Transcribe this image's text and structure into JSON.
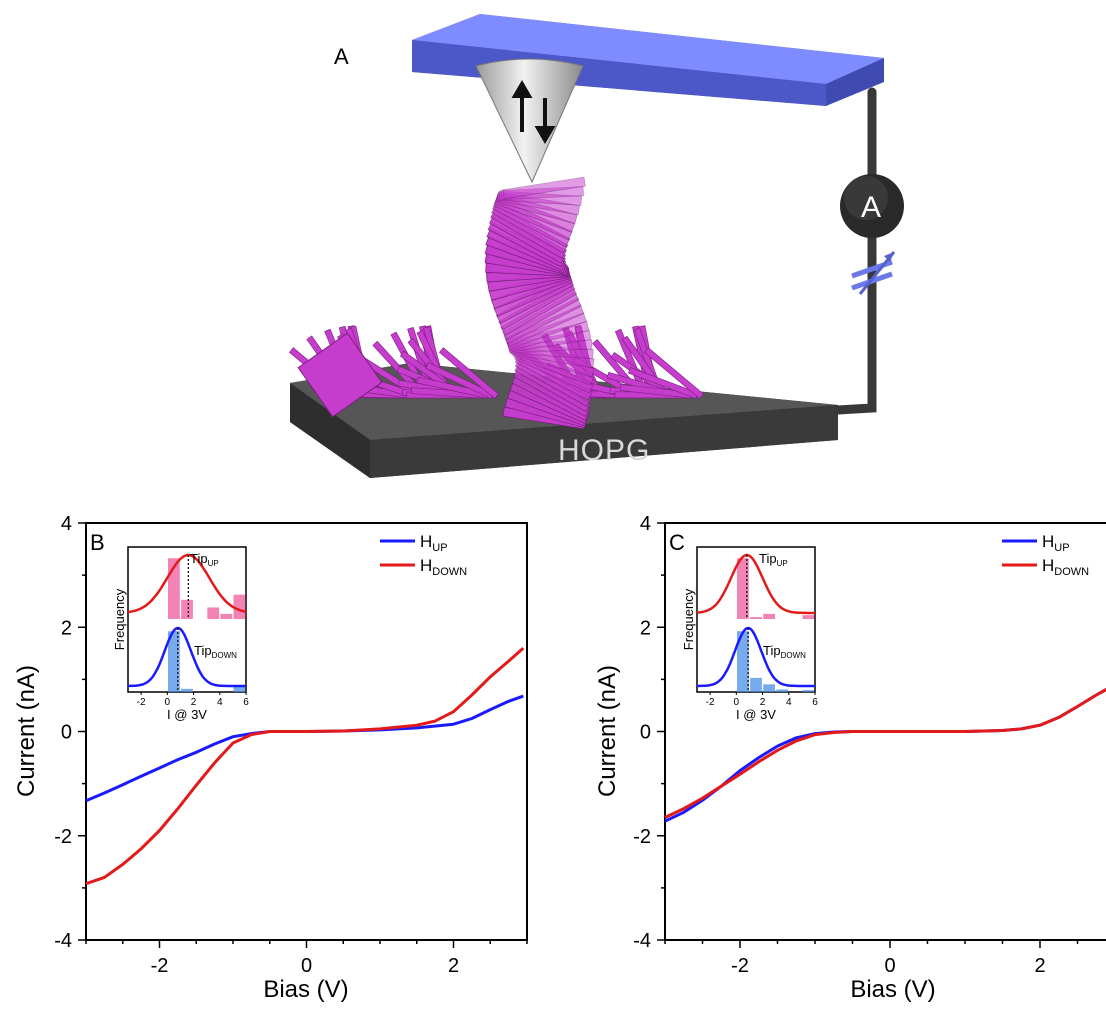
{
  "scene": {
    "panel_label": "A",
    "substrate_label": "HOPG",
    "meter_label": "A",
    "colors": {
      "cantilever": "#6f7cf0",
      "helix": "#c63ccd",
      "substrate": "#4b4b4b",
      "wire": "#3a3a3a"
    }
  },
  "chart_data": [
    {
      "type": "line",
      "panel_label": "B",
      "xlabel": "Bias (V)",
      "ylabel": "Current (nA)",
      "xlim": [
        -3,
        3
      ],
      "ylim": [
        -4,
        4
      ],
      "xticks": [
        -2,
        0,
        2
      ],
      "yticks": [
        -4,
        -2,
        0,
        2,
        4
      ],
      "legend_position": "top-right",
      "series": [
        {
          "name": "UP",
          "legend_main": "H",
          "color": "#1a1aff",
          "x": [
            -3,
            -2.75,
            -2.5,
            -2.25,
            -2,
            -1.75,
            -1.5,
            -1.25,
            -1,
            -0.75,
            -0.5,
            0,
            0.5,
            1,
            1.5,
            2,
            2.25,
            2.5,
            2.75,
            2.95
          ],
          "y": [
            -1.33,
            -1.18,
            -1.02,
            -0.86,
            -0.7,
            -0.54,
            -0.4,
            -0.24,
            -0.1,
            -0.04,
            0,
            0,
            0.01,
            0.03,
            0.07,
            0.14,
            0.25,
            0.42,
            0.58,
            0.68
          ]
        },
        {
          "name": "DOWN",
          "legend_main": "H",
          "color": "#e31a1a",
          "x": [
            -3,
            -2.75,
            -2.5,
            -2.25,
            -2,
            -1.75,
            -1.5,
            -1.25,
            -1,
            -0.75,
            -0.5,
            0,
            0.5,
            1,
            1.5,
            1.75,
            2,
            2.25,
            2.5,
            2.75,
            2.95
          ],
          "y": [
            -2.92,
            -2.8,
            -2.55,
            -2.25,
            -1.9,
            -1.48,
            -1.03,
            -0.6,
            -0.22,
            -0.06,
            0,
            0,
            0.01,
            0.05,
            0.12,
            0.2,
            0.38,
            0.7,
            1.05,
            1.35,
            1.6
          ]
        }
      ],
      "inset": {
        "xlabel": "I @ 3V",
        "ylabel": "Frequency",
        "xlim": [
          -3,
          6
        ],
        "xticks": [
          -2,
          0,
          2,
          4,
          6
        ],
        "up_label_main": "Tip",
        "up_label_sub": "UP",
        "down_label_main": "Tip",
        "down_label_sub": "DOWN",
        "up_bars": [
          {
            "x": 0.5,
            "h": 0.95
          },
          {
            "x": 1.5,
            "h": 0.3
          },
          {
            "x": 3.5,
            "h": 0.18
          },
          {
            "x": 4.5,
            "h": 0.08
          },
          {
            "x": 5.5,
            "h": 0.38
          }
        ],
        "down_bars": [
          {
            "x": 0.5,
            "h": 0.95
          },
          {
            "x": 1.5,
            "h": 0.05
          },
          {
            "x": 5.5,
            "h": 0.08
          }
        ],
        "up_gauss": {
          "mu": 1.6,
          "sigma": 1.6
        },
        "down_gauss": {
          "mu": 0.8,
          "sigma": 1.0
        }
      }
    },
    {
      "type": "line",
      "panel_label": "C",
      "xlabel": "Bias (V)",
      "ylabel": "Current (nA)",
      "xlim": [
        -3,
        3
      ],
      "ylim": [
        -4,
        4
      ],
      "xticks": [
        -2,
        0,
        2
      ],
      "yticks": [
        -4,
        -2,
        0,
        2,
        4
      ],
      "legend_position": "top-right",
      "series": [
        {
          "name": "UP",
          "legend_main": "H",
          "color": "#1a1aff",
          "x": [
            -3,
            -2.75,
            -2.5,
            -2.25,
            -2,
            -1.75,
            -1.5,
            -1.25,
            -1,
            -0.75,
            -0.5,
            0,
            0.5,
            1,
            1.5,
            1.75,
            2,
            2.25,
            2.5,
            2.75,
            3
          ],
          "y": [
            -1.72,
            -1.55,
            -1.32,
            -1.05,
            -0.75,
            -0.5,
            -0.28,
            -0.12,
            -0.04,
            -0.01,
            0,
            0,
            0,
            0,
            0.02,
            0.05,
            0.12,
            0.27,
            0.48,
            0.7,
            0.9
          ]
        },
        {
          "name": "DOWN",
          "legend_main": "H",
          "color": "#e31a1a",
          "x": [
            -3,
            -2.75,
            -2.5,
            -2.25,
            -2,
            -1.75,
            -1.5,
            -1.25,
            -1,
            -0.75,
            -0.5,
            0,
            0.5,
            1,
            1.5,
            1.75,
            2,
            2.25,
            2.5,
            2.75,
            3
          ],
          "y": [
            -1.65,
            -1.48,
            -1.28,
            -1.05,
            -0.82,
            -0.58,
            -0.36,
            -0.18,
            -0.06,
            -0.02,
            0,
            0,
            0,
            0,
            0.02,
            0.05,
            0.12,
            0.27,
            0.48,
            0.7,
            0.9
          ]
        }
      ],
      "inset": {
        "xlabel": "I @ 3V",
        "ylabel": "Frequency",
        "xlim": [
          -3,
          6
        ],
        "xticks": [
          -2,
          0,
          2,
          4,
          6
        ],
        "up_label_main": "Tip",
        "up_label_sub": "UP",
        "down_label_main": "Tip",
        "down_label_sub": "DOWN",
        "up_bars": [
          {
            "x": 0.5,
            "h": 0.95
          },
          {
            "x": 1.5,
            "h": 0.03
          },
          {
            "x": 2.5,
            "h": 0.08
          },
          {
            "x": 5.5,
            "h": 0.06
          }
        ],
        "down_bars": [
          {
            "x": 0.5,
            "h": 0.95
          },
          {
            "x": 1.5,
            "h": 0.22
          },
          {
            "x": 2.5,
            "h": 0.12
          },
          {
            "x": 3.5,
            "h": 0.04
          },
          {
            "x": 5.5,
            "h": 0.03
          }
        ],
        "up_gauss": {
          "mu": 0.8,
          "sigma": 1.2
        },
        "down_gauss": {
          "mu": 0.9,
          "sigma": 1.0
        }
      }
    }
  ]
}
